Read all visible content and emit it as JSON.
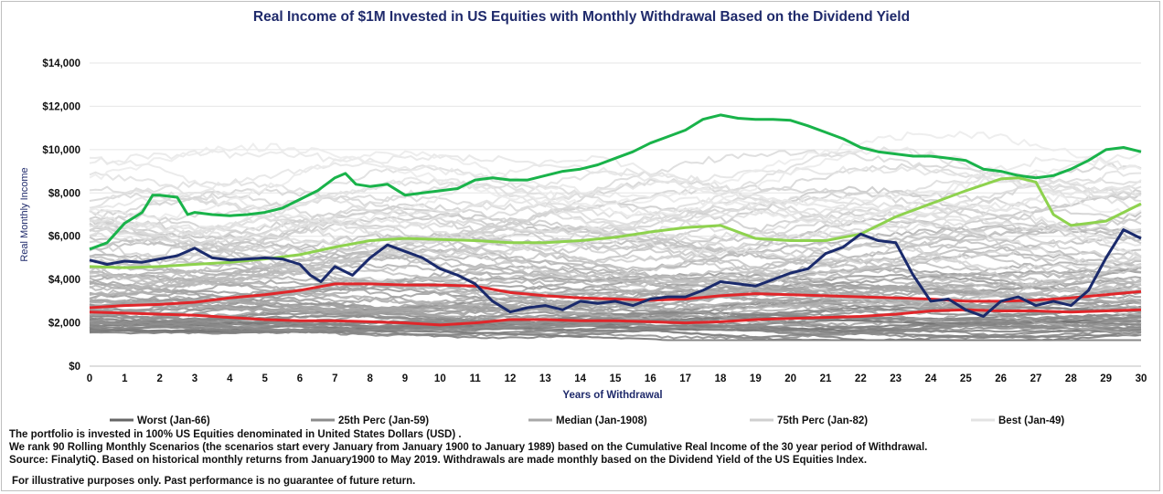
{
  "title": "Real Income of $1M Invested in US Equities with Monthly Withdrawal Based on the Dividend Yield",
  "colors": {
    "title": "#1f2a6b",
    "axis_label": "#1f2a6b",
    "background_lines": "#c9c9c9",
    "best": "#19b34a",
    "seventy_fifth": "#8ed24e",
    "median": "#e0262a",
    "worst_red": "#e0262a",
    "highlight": "#1a2a6c"
  },
  "chart_data": {
    "type": "line",
    "title": "Real Income of $1M Invested in US Equities with Monthly Withdrawal Based on the Dividend Yield",
    "xlabel": "Years of Withdrawal",
    "ylabel": "Real Monthly Income",
    "xlim": [
      0,
      30
    ],
    "ylim": [
      0,
      14000
    ],
    "x_ticks": [
      "0",
      "1",
      "2",
      "3",
      "4",
      "5",
      "6",
      "7",
      "8",
      "9",
      "10",
      "11",
      "12",
      "13",
      "14",
      "15",
      "16",
      "17",
      "18",
      "19",
      "20",
      "21",
      "22",
      "23",
      "24",
      "25",
      "26",
      "27",
      "28",
      "29",
      "30"
    ],
    "y_ticks": [
      "$0",
      "$2,000",
      "$4,000",
      "$6,000",
      "$8,000",
      "$10,000",
      "$12,000",
      "$14,000"
    ],
    "legend_position": "bottom",
    "legend": [
      {
        "label": "Worst (Jan-66)",
        "color": "#666666"
      },
      {
        "label": "25th Perc (Jan-59)",
        "color": "#8c8c8c"
      },
      {
        "label": "Median (Jan-1908)",
        "color": "#a8a8a8"
      },
      {
        "label": "75th Perc (Jan-82)",
        "color": "#cfcfcf"
      },
      {
        "label": "Best (Jan-49)",
        "color": "#e3e3e3"
      }
    ],
    "highlighted_series": [
      {
        "name": "Top green",
        "color": "#19b34a",
        "x": [
          0,
          0.5,
          1,
          1.5,
          1.8,
          2,
          2.5,
          2.8,
          3,
          3.5,
          4,
          4.5,
          5,
          5.5,
          6,
          6.5,
          7,
          7.3,
          7.6,
          8,
          8.5,
          9,
          9.5,
          10,
          10.5,
          11,
          11.5,
          12,
          12.5,
          13,
          13.5,
          14,
          14.5,
          15,
          15.5,
          16,
          16.5,
          17,
          17.5,
          18,
          18.5,
          19,
          19.5,
          20,
          20.5,
          21,
          21.5,
          22,
          22.5,
          23,
          23.5,
          24,
          24.5,
          25,
          25.5,
          26,
          26.5,
          27,
          27.5,
          28,
          28.5,
          29,
          29.5,
          30
        ],
        "y": [
          5400,
          5700,
          6600,
          7100,
          7900,
          7900,
          7800,
          7000,
          7100,
          7000,
          6950,
          7000,
          7100,
          7300,
          7700,
          8100,
          8700,
          8900,
          8400,
          8300,
          8400,
          7900,
          8000,
          8100,
          8200,
          8600,
          8700,
          8600,
          8600,
          8800,
          9000,
          9100,
          9300,
          9600,
          9900,
          10300,
          10600,
          10900,
          11400,
          11600,
          11450,
          11400,
          11400,
          11350,
          11100,
          10800,
          10500,
          10100,
          9900,
          9800,
          9700,
          9700,
          9600,
          9500,
          9100,
          9000,
          8800,
          8700,
          8800,
          9100,
          9500,
          10000,
          10100,
          9900
        ]
      },
      {
        "name": "Light green",
        "color": "#8ed24e",
        "x": [
          0,
          1,
          2,
          3,
          4,
          5,
          6,
          7,
          8,
          9,
          10,
          11,
          12,
          13,
          14,
          15,
          16,
          17,
          18,
          19,
          20,
          21,
          22,
          23,
          24,
          25,
          26,
          26.5,
          27,
          27.5,
          28,
          29,
          30
        ],
        "y": [
          4600,
          4550,
          4600,
          4700,
          4800,
          4950,
          5150,
          5500,
          5800,
          5900,
          5850,
          5800,
          5700,
          5700,
          5800,
          5950,
          6200,
          6400,
          6500,
          5900,
          5800,
          5800,
          6100,
          6900,
          7500,
          8100,
          8650,
          8700,
          8500,
          7000,
          6500,
          6700,
          7500
        ]
      },
      {
        "name": "Red upper",
        "color": "#e0262a",
        "x": [
          0,
          1,
          2,
          3,
          4,
          5,
          6,
          7,
          8,
          9,
          10,
          11,
          12,
          13,
          14,
          15,
          16,
          17,
          18,
          19,
          20,
          21,
          22,
          23,
          24,
          25,
          26,
          27,
          28,
          29,
          30
        ],
        "y": [
          2700,
          2800,
          2850,
          2950,
          3150,
          3300,
          3500,
          3800,
          3800,
          3750,
          3750,
          3700,
          3400,
          3250,
          3150,
          3100,
          3050,
          3100,
          3250,
          3350,
          3300,
          3250,
          3200,
          3150,
          3100,
          3000,
          3000,
          3050,
          3150,
          3300,
          3450
        ]
      },
      {
        "name": "Red lower",
        "color": "#e0262a",
        "x": [
          0,
          1,
          2,
          3,
          4,
          5,
          6,
          7,
          8,
          9,
          10,
          11,
          12,
          13,
          14,
          15,
          16,
          17,
          18,
          19,
          20,
          21,
          22,
          23,
          24,
          25,
          26,
          27,
          28,
          29,
          30
        ],
        "y": [
          2500,
          2450,
          2400,
          2350,
          2250,
          2150,
          2100,
          2100,
          2050,
          2000,
          1900,
          2000,
          2150,
          2150,
          2100,
          2100,
          2050,
          2000,
          2050,
          2150,
          2200,
          2250,
          2300,
          2400,
          2550,
          2600,
          2550,
          2550,
          2500,
          2550,
          2600
        ]
      },
      {
        "name": "Navy",
        "color": "#1a2a6c",
        "x": [
          0,
          0.5,
          1,
          1.5,
          2,
          2.5,
          3,
          3.5,
          4,
          4.5,
          5,
          5.5,
          6,
          6.3,
          6.6,
          7,
          7.5,
          8,
          8.5,
          9,
          9.5,
          10,
          10.5,
          11,
          11.5,
          12,
          12.5,
          13,
          13.5,
          14,
          14.5,
          15,
          15.5,
          16,
          16.5,
          17,
          17.5,
          18,
          18.5,
          19,
          19.5,
          20,
          20.5,
          21,
          21.5,
          22,
          22.5,
          23,
          23.5,
          24,
          24.5,
          25,
          25.5,
          26,
          26.5,
          27,
          27.5,
          28,
          28.5,
          29,
          29.5,
          30
        ],
        "y": [
          4900,
          4700,
          4850,
          4800,
          4950,
          5100,
          5450,
          5000,
          4900,
          4950,
          5000,
          4950,
          4700,
          4200,
          3900,
          4600,
          4200,
          5000,
          5600,
          5300,
          5000,
          4500,
          4200,
          3800,
          3000,
          2500,
          2700,
          2800,
          2600,
          3000,
          2900,
          3000,
          2800,
          3100,
          3200,
          3200,
          3500,
          3900,
          3800,
          3700,
          4000,
          4300,
          4500,
          5200,
          5500,
          6100,
          5800,
          5700,
          4200,
          3000,
          3100,
          2600,
          2300,
          3000,
          3200,
          2800,
          3000,
          2800,
          3500,
          5000,
          6300,
          5900
        ]
      }
    ],
    "background_series_count": 90
  },
  "footer": {
    "line1": "The portfolio is invested in 100% US Equities denominated in United States Dollars (USD) .",
    "line2": "We rank  90 Rolling Monthly Scenarios (the scenarios start every January from January 1900  to January 1989)  based on the Cumulative Real Income of the 30 year period of Withdrawal.",
    "line3": "Source: FinalytiQ. Based on historical monthly returns from January1900 to May 2019.  Withdrawals are made monthly based on the Dividend Yield of the US Equities Index.",
    "line4": "For illustrative purposes only. Past performance is no guarantee of future return."
  }
}
